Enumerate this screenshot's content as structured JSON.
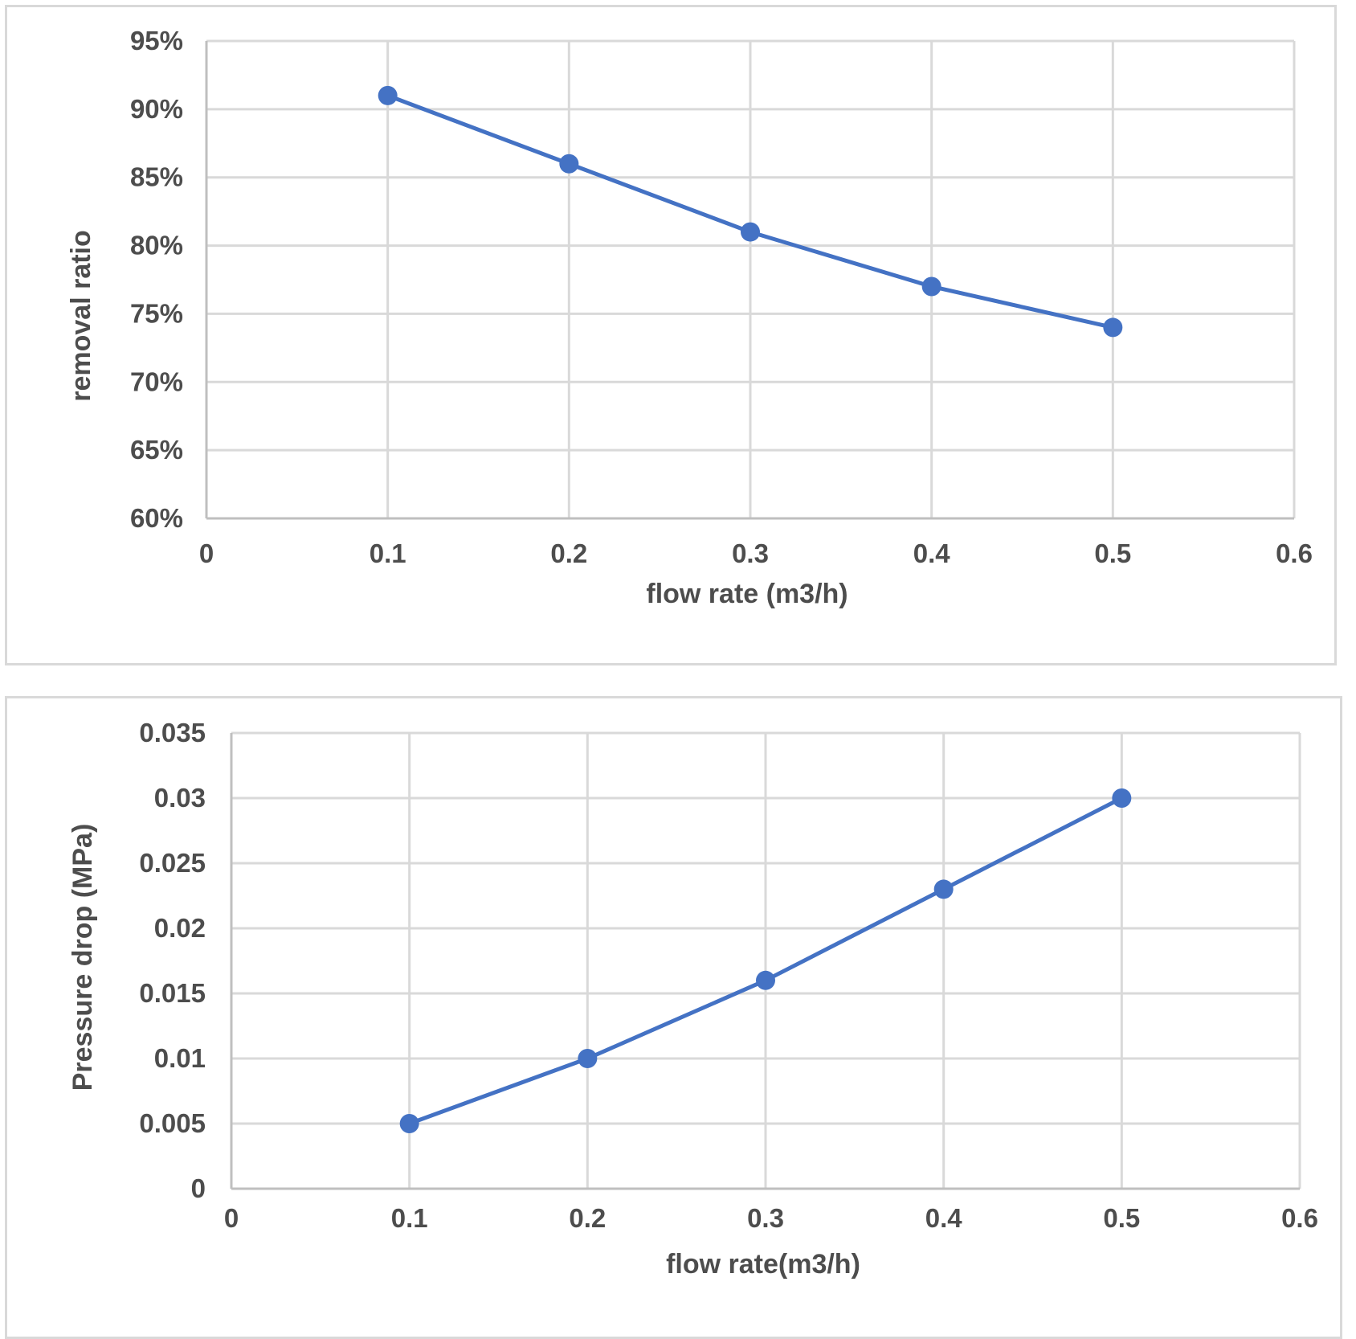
{
  "chart_data": [
    {
      "type": "line",
      "title": "",
      "xlabel": "flow rate (m3/h)",
      "ylabel": "removal ratio",
      "x": [
        0.1,
        0.2,
        0.3,
        0.4,
        0.5
      ],
      "series": [
        {
          "name": "removal ratio",
          "values": [
            0.91,
            0.86,
            0.81,
            0.77,
            0.74
          ]
        }
      ],
      "xlim": [
        0,
        0.6
      ],
      "ylim": [
        0.6,
        0.95
      ],
      "x_ticks": [
        0,
        0.1,
        0.2,
        0.3,
        0.4,
        0.5,
        0.6
      ],
      "x_tick_labels": [
        "0",
        "0.1",
        "0.2",
        "0.3",
        "0.4",
        "0.5",
        "0.6"
      ],
      "y_ticks": [
        0.6,
        0.65,
        0.7,
        0.75,
        0.8,
        0.85,
        0.9,
        0.95
      ],
      "y_tick_labels": [
        "60%",
        "65%",
        "70%",
        "75%",
        "80%",
        "85%",
        "90%",
        "95%"
      ],
      "grid": true,
      "legend": "none",
      "color": "#4472c4"
    },
    {
      "type": "line",
      "title": "",
      "xlabel": "flow rate(m3/h)",
      "ylabel": "Pressure drop (MPa)",
      "x": [
        0.1,
        0.2,
        0.3,
        0.4,
        0.5
      ],
      "series": [
        {
          "name": "Pressure drop",
          "values": [
            0.005,
            0.01,
            0.016,
            0.023,
            0.03
          ]
        }
      ],
      "xlim": [
        0,
        0.6
      ],
      "ylim": [
        0,
        0.035
      ],
      "x_ticks": [
        0,
        0.1,
        0.2,
        0.3,
        0.4,
        0.5,
        0.6
      ],
      "x_tick_labels": [
        "0",
        "0.1",
        "0.2",
        "0.3",
        "0.4",
        "0.5",
        "0.6"
      ],
      "y_ticks": [
        0,
        0.005,
        0.01,
        0.015,
        0.02,
        0.025,
        0.03,
        0.035
      ],
      "y_tick_labels": [
        "0",
        "0.005",
        "0.01",
        "0.015",
        "0.02",
        "0.025",
        "0.03",
        "0.035"
      ],
      "grid": true,
      "legend": "none",
      "color": "#4472c4"
    }
  ]
}
